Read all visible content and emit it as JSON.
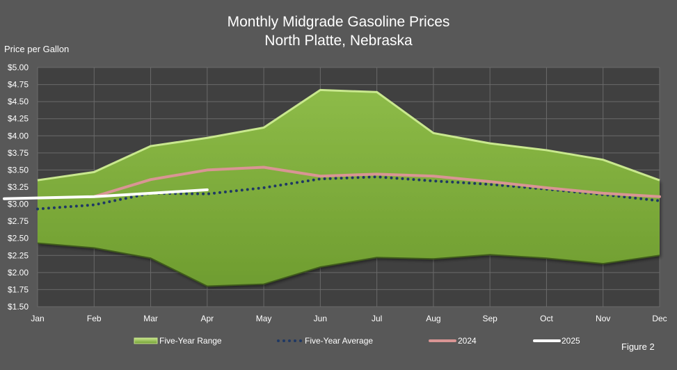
{
  "chart_data": {
    "type": "area",
    "title": "Monthly Midgrade Gasoline Prices",
    "subtitle": "North Platte, Nebraska",
    "ylabel": "Price per Gallon",
    "xlabel": "",
    "categories": [
      "Jan",
      "Feb",
      "Mar",
      "Apr",
      "May",
      "Jun",
      "Jul",
      "Aug",
      "Sep",
      "Oct",
      "Nov",
      "Dec"
    ],
    "ylim": [
      1.5,
      5.0
    ],
    "ytick_labels": [
      "$1.50",
      "$1.75",
      "$2.00",
      "$2.25",
      "$2.50",
      "$2.75",
      "$3.00",
      "$3.25",
      "$3.50",
      "$3.75",
      "$4.00",
      "$4.25",
      "$4.50",
      "$4.75",
      "$5.00"
    ],
    "grid": true,
    "legend_position": "bottom",
    "range": {
      "name": "Five-Year Range",
      "low": [
        2.43,
        2.36,
        2.21,
        1.8,
        1.83,
        2.08,
        2.22,
        2.2,
        2.26,
        2.21,
        2.13,
        2.25
      ],
      "high": [
        3.35,
        3.47,
        3.85,
        3.97,
        4.12,
        4.67,
        4.64,
        4.04,
        3.89,
        3.79,
        3.65,
        3.35
      ],
      "color": "#7ba83a"
    },
    "series": [
      {
        "name": "Five-Year Average",
        "values": [
          2.93,
          2.99,
          3.16,
          3.15,
          3.24,
          3.37,
          3.4,
          3.34,
          3.29,
          3.22,
          3.14,
          3.05
        ],
        "color": "#1f3864",
        "style": "dotted"
      },
      {
        "name": "2024",
        "values": [
          null,
          3.11,
          3.36,
          3.5,
          3.54,
          3.41,
          3.44,
          3.41,
          3.33,
          3.24,
          3.16,
          3.11
        ],
        "color": "#d99594",
        "style": "solid"
      },
      {
        "name": "2025",
        "values": [
          3.08,
          3.11,
          3.16,
          3.21,
          null,
          null,
          null,
          null,
          null,
          null,
          null,
          null
        ],
        "color": "#ffffff",
        "style": "solid"
      }
    ]
  },
  "figure_label": "Figure 2"
}
